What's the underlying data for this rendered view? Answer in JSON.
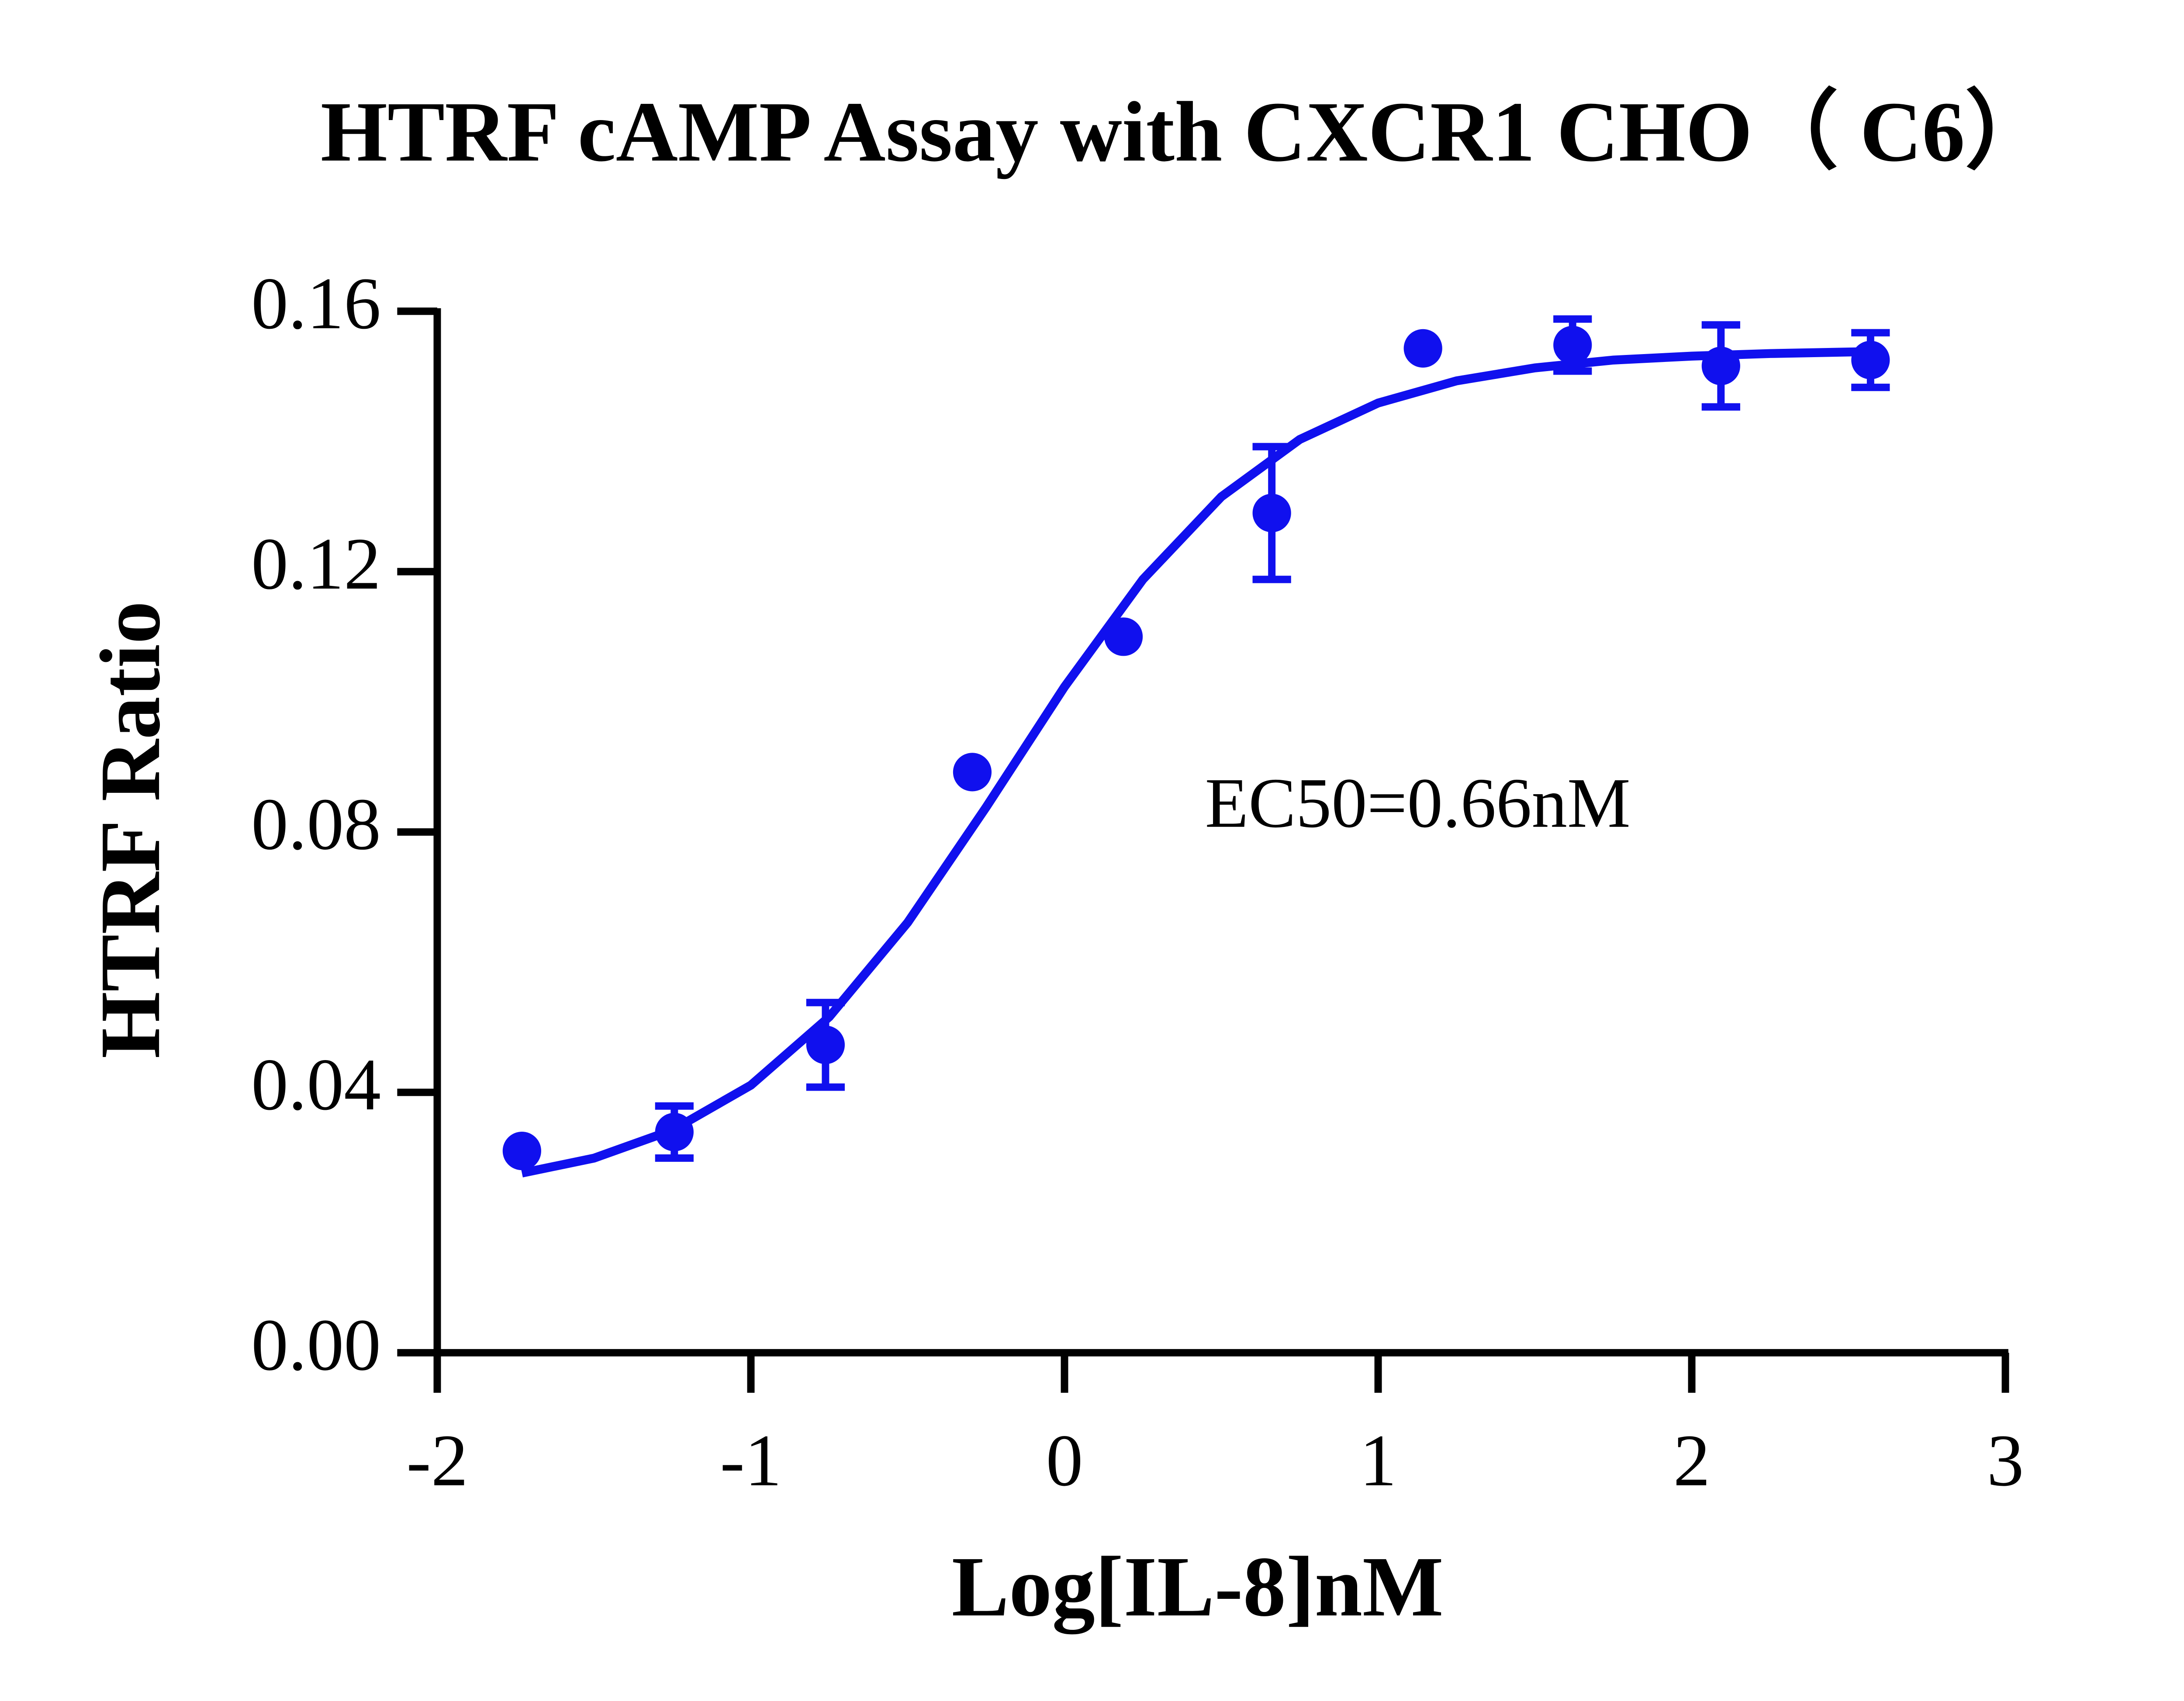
{
  "chart_data": {
    "type": "scatter",
    "title": "HTRF cAMP Assay with CXCR1 CHO（ C6）",
    "xlabel": "Log[IL-8]nM",
    "ylabel": "HTRF Ratio",
    "annotation": "EC50=0.66nM",
    "color": "#1010ee",
    "xlim": [
      -2,
      3
    ],
    "xticks": [
      -2,
      -1,
      0,
      1,
      2,
      3
    ],
    "ylim": [
      0,
      0.16
    ],
    "yticks": [
      {
        "value": 0,
        "label": "0.00"
      },
      0.04,
      0.08,
      0.12,
      0.16
    ],
    "grid": false,
    "points": {
      "x": [
        -1.73,
        -1.244,
        -0.762,
        -0.294,
        0.188,
        0.661,
        1.143,
        1.62,
        2.093,
        2.57
      ],
      "values": [
        0.031,
        0.0339,
        0.0473,
        0.0892,
        0.11,
        0.129,
        0.1543,
        0.1548,
        0.1516,
        0.1525
      ],
      "errors": [
        null,
        0.004,
        0.0065,
        null,
        null,
        0.0102,
        null,
        0.004,
        0.0063,
        0.0042
      ]
    },
    "curve": {
      "x": [
        -1.73,
        -1.5,
        -1.25,
        -1.0,
        -0.75,
        -0.5,
        -0.25,
        0,
        0.25,
        0.5,
        0.75,
        1.0,
        1.25,
        1.5,
        1.75,
        2.0,
        2.25,
        2.57
      ],
      "values": [
        0.0276,
        0.0299,
        0.0342,
        0.0411,
        0.0516,
        0.0661,
        0.0838,
        0.1023,
        0.1188,
        0.1315,
        0.1403,
        0.1459,
        0.1493,
        0.1513,
        0.1525,
        0.1531,
        0.1535,
        0.1538
      ]
    }
  }
}
